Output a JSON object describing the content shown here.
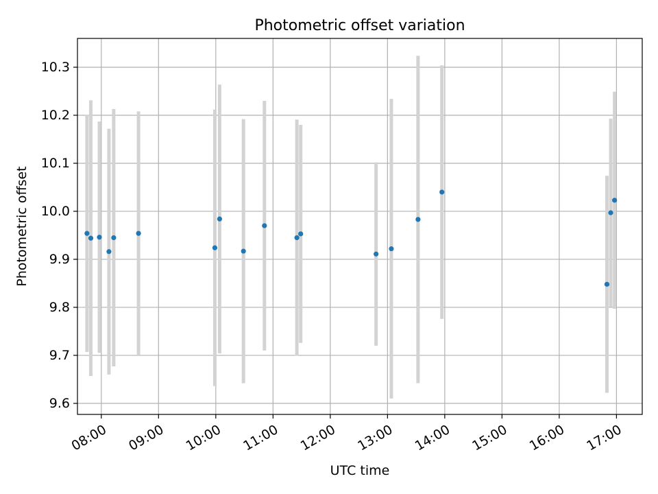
{
  "chart_data": {
    "type": "scatter",
    "title": "Photometric offset variation",
    "xlabel": "UTC time",
    "ylabel": "Photometric offset",
    "x_tick_labels": [
      "08:00",
      "09:00",
      "10:00",
      "11:00",
      "12:00",
      "13:00",
      "14:00",
      "15:00",
      "16:00",
      "17:00"
    ],
    "y_tick_labels": [
      "9.6",
      "9.7",
      "9.8",
      "9.9",
      "10.0",
      "10.1",
      "10.2",
      "10.3"
    ],
    "x_ticks": [
      "08:00",
      "09:00",
      "10:00",
      "11:00",
      "12:00",
      "13:00",
      "14:00",
      "15:00",
      "16:00",
      "17:00"
    ],
    "y_ticks": [
      9.6,
      9.7,
      9.8,
      9.9,
      10.0,
      10.1,
      10.2,
      10.3
    ],
    "xlim": [
      "07:35",
      "17:27"
    ],
    "ylim": [
      9.577,
      10.36
    ],
    "grid": true,
    "point_color": "#1f77b4",
    "errorbar_color": "#d3d3d3",
    "points": [
      {
        "x": "07:45",
        "y": 9.954,
        "err": 0.247
      },
      {
        "x": "07:49",
        "y": 9.944,
        "err": 0.287
      },
      {
        "x": "07:58",
        "y": 9.946,
        "err": 0.241
      },
      {
        "x": "08:08",
        "y": 9.916,
        "err": 0.256
      },
      {
        "x": "08:13",
        "y": 9.945,
        "err": 0.268
      },
      {
        "x": "08:39",
        "y": 9.954,
        "err": 0.254
      },
      {
        "x": "09:59",
        "y": 9.924,
        "err": 0.288
      },
      {
        "x": "10:04",
        "y": 9.984,
        "err": 0.28
      },
      {
        "x": "10:29",
        "y": 9.917,
        "err": 0.275
      },
      {
        "x": "10:51",
        "y": 9.97,
        "err": 0.26
      },
      {
        "x": "11:25",
        "y": 9.945,
        "err": 0.246
      },
      {
        "x": "11:29",
        "y": 9.953,
        "err": 0.227
      },
      {
        "x": "12:48",
        "y": 9.911,
        "err": 0.191
      },
      {
        "x": "13:04",
        "y": 9.922,
        "err": 0.312
      },
      {
        "x": "13:32",
        "y": 9.983,
        "err": 0.341
      },
      {
        "x": "13:57",
        "y": 10.04,
        "err": 0.264
      },
      {
        "x": "16:50",
        "y": 9.848,
        "err": 0.226
      },
      {
        "x": "16:54",
        "y": 9.997,
        "err": 0.196
      },
      {
        "x": "16:58",
        "y": 10.023,
        "err": 0.226
      }
    ]
  }
}
